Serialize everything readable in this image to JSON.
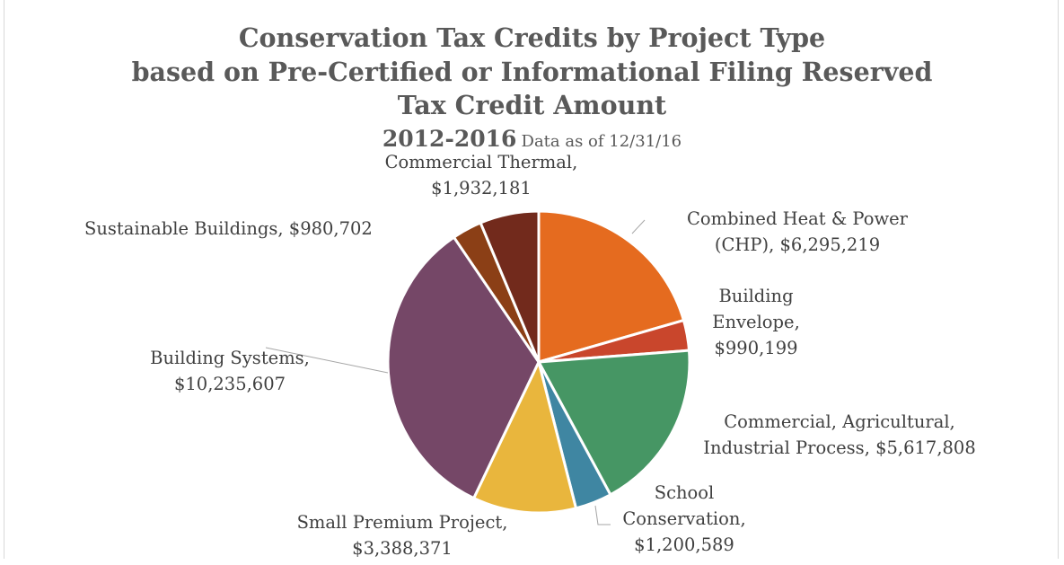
{
  "chart_data": {
    "type": "pie",
    "title_lines": [
      "Conservation Tax Credits by Project Type",
      "based on Pre-Certified or Informational Filing Reserved",
      "Tax Credit Amount"
    ],
    "subtitle_years": "2012-2016",
    "subtitle_note": "Data as of 12/31/16",
    "slices": [
      {
        "name": "Combined Heat & Power (CHP)",
        "value": 6295219,
        "value_label": "$6,295,219",
        "color": "#e56b1f",
        "label_lines": [
          "Combined Heat & Power",
          "(CHP),  $6,295,219"
        ]
      },
      {
        "name": "Building Envelope",
        "value": 990199,
        "value_label": "$990,199",
        "color": "#c9462c",
        "label_lines": [
          "Building",
          "Envelope,",
          "$990,199"
        ]
      },
      {
        "name": "Commercial, Agricultural, Industrial Process",
        "value": 5617808,
        "value_label": "$5,617,808",
        "color": "#469664",
        "label_lines": [
          "Commercial, Agricultural,",
          "Industrial Process,  $5,617,808"
        ]
      },
      {
        "name": "School Conservation",
        "value": 1200589,
        "value_label": "$1,200,589",
        "color": "#3f86a2",
        "label_lines": [
          "School",
          "Conservation,",
          "$1,200,589"
        ]
      },
      {
        "name": "Small Premium Project",
        "value": 3388371,
        "value_label": "$3,388,371",
        "color": "#e9b63d",
        "label_lines": [
          "Small Premium Project,",
          "$3,388,371"
        ]
      },
      {
        "name": "Building Systems",
        "value": 10235607,
        "value_label": "$10,235,607",
        "color": "#754767",
        "label_lines": [
          "Building Systems,",
          "$10,235,607"
        ]
      },
      {
        "name": "Sustainable Buildings",
        "value": 980702,
        "value_label": "$980,702",
        "color": "#8b3f16",
        "label_lines": [
          "Sustainable Buildings,  $980,702"
        ]
      },
      {
        "name": "Commercial Thermal",
        "value": 1932181,
        "value_label": "$1,932,181",
        "color": "#722a1c",
        "label_lines": [
          "Commercial Thermal,",
          "$1,932,181"
        ]
      }
    ]
  }
}
